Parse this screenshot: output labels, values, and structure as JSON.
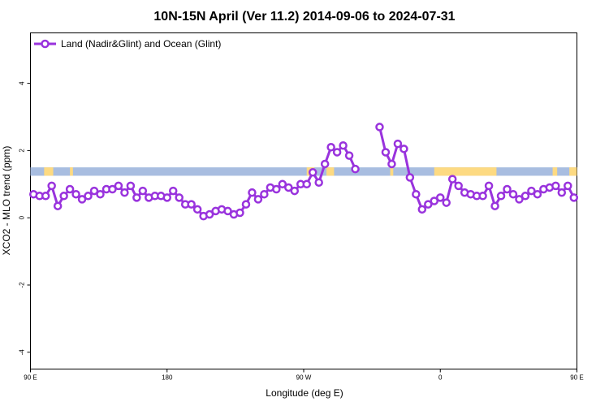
{
  "chart_data": {
    "type": "line",
    "title": "10N-15N April (Ver 11.2)   2014-09-06 to 2024-07-31",
    "xlabel": "Longitude (deg E)",
    "ylabel": "XCO2 - MLO trend (ppm)",
    "xlim": [
      90,
      450
    ],
    "ylim": [
      -4.5,
      5.5
    ],
    "grid": false,
    "legend_position": "top-left",
    "xticks": [
      {
        "value": 90,
        "label": "90 E"
      },
      {
        "value": 180,
        "label": "180"
      },
      {
        "value": 270,
        "label": "90 W"
      },
      {
        "value": 360,
        "label": "0"
      },
      {
        "value": 450,
        "label": "90 E"
      },
      {
        "value": 540,
        "label": "180"
      }
    ],
    "yticks": [
      {
        "value": -4,
        "label": "-4"
      },
      {
        "value": -2,
        "label": "-2"
      },
      {
        "value": 0,
        "label": "0"
      },
      {
        "value": 2,
        "label": "2"
      },
      {
        "value": 4,
        "label": "4"
      }
    ],
    "land_ocean_band": {
      "y_bottom": 1.25,
      "y_top": 1.5,
      "ocean_color": "#a8bde0",
      "land_color": "#fdda82",
      "land_segments": [
        [
          99,
          105
        ],
        [
          116,
          118
        ],
        [
          272,
          277
        ],
        [
          285,
          290
        ],
        [
          327,
          329
        ],
        [
          356,
          397
        ],
        [
          434,
          437
        ],
        [
          445,
          453
        ]
      ]
    },
    "series": [
      {
        "name": "Land (Nadir&Glint) and Ocean (Glint)",
        "color": "#9933dd",
        "points": [
          [
            92,
            0.7
          ],
          [
            96,
            0.65
          ],
          [
            100,
            0.65
          ],
          [
            104,
            0.95
          ],
          [
            108,
            0.35
          ],
          [
            112,
            0.65
          ],
          [
            116,
            0.85
          ],
          [
            120,
            0.7
          ],
          [
            124,
            0.55
          ],
          [
            128,
            0.65
          ],
          [
            132,
            0.8
          ],
          [
            136,
            0.7
          ],
          [
            140,
            0.85
          ],
          [
            144,
            0.85
          ],
          [
            148,
            0.95
          ],
          [
            152,
            0.75
          ],
          [
            156,
            0.95
          ],
          [
            160,
            0.6
          ],
          [
            164,
            0.8
          ],
          [
            168,
            0.6
          ],
          [
            172,
            0.65
          ],
          [
            176,
            0.65
          ],
          [
            180,
            0.6
          ],
          [
            184,
            0.8
          ],
          [
            188,
            0.6
          ],
          [
            192,
            0.4
          ],
          [
            196,
            0.4
          ],
          [
            200,
            0.25
          ],
          [
            204,
            0.05
          ],
          [
            208,
            0.1
          ],
          [
            212,
            0.2
          ],
          [
            216,
            0.25
          ],
          [
            220,
            0.2
          ],
          [
            224,
            0.1
          ],
          [
            228,
            0.15
          ],
          [
            232,
            0.4
          ],
          [
            236,
            0.75
          ],
          [
            240,
            0.55
          ],
          [
            244,
            0.7
          ],
          [
            248,
            0.9
          ],
          [
            252,
            0.85
          ],
          [
            256,
            1.0
          ],
          [
            260,
            0.9
          ],
          [
            264,
            0.8
          ],
          [
            268,
            1.0
          ],
          [
            272,
            1.0
          ],
          [
            276,
            1.35
          ],
          [
            280,
            1.05
          ],
          [
            284,
            1.6
          ],
          [
            288,
            2.1
          ],
          [
            292,
            1.95
          ],
          [
            296,
            2.15
          ],
          [
            300,
            1.85
          ],
          [
            304,
            1.45
          ],
          null,
          [
            320,
            2.7
          ],
          [
            324,
            1.95
          ],
          [
            328,
            1.6
          ],
          [
            332,
            2.2
          ],
          [
            336,
            2.05
          ],
          [
            340,
            1.2
          ],
          [
            344,
            0.7
          ],
          [
            348,
            0.25
          ],
          [
            352,
            0.4
          ],
          [
            356,
            0.5
          ],
          [
            360,
            0.6
          ],
          [
            364,
            0.45
          ],
          [
            368,
            1.15
          ],
          [
            372,
            0.95
          ],
          [
            376,
            0.75
          ],
          [
            380,
            0.7
          ],
          [
            384,
            0.65
          ],
          [
            388,
            0.65
          ],
          [
            392,
            0.95
          ],
          [
            396,
            0.35
          ],
          [
            400,
            0.65
          ],
          [
            404,
            0.85
          ],
          [
            408,
            0.7
          ],
          [
            412,
            0.55
          ],
          [
            416,
            0.65
          ],
          [
            420,
            0.8
          ],
          [
            424,
            0.7
          ],
          [
            428,
            0.85
          ],
          [
            432,
            0.9
          ],
          [
            436,
            0.95
          ],
          [
            440,
            0.75
          ],
          [
            444,
            0.95
          ],
          [
            448,
            0.6
          ]
        ]
      }
    ]
  }
}
